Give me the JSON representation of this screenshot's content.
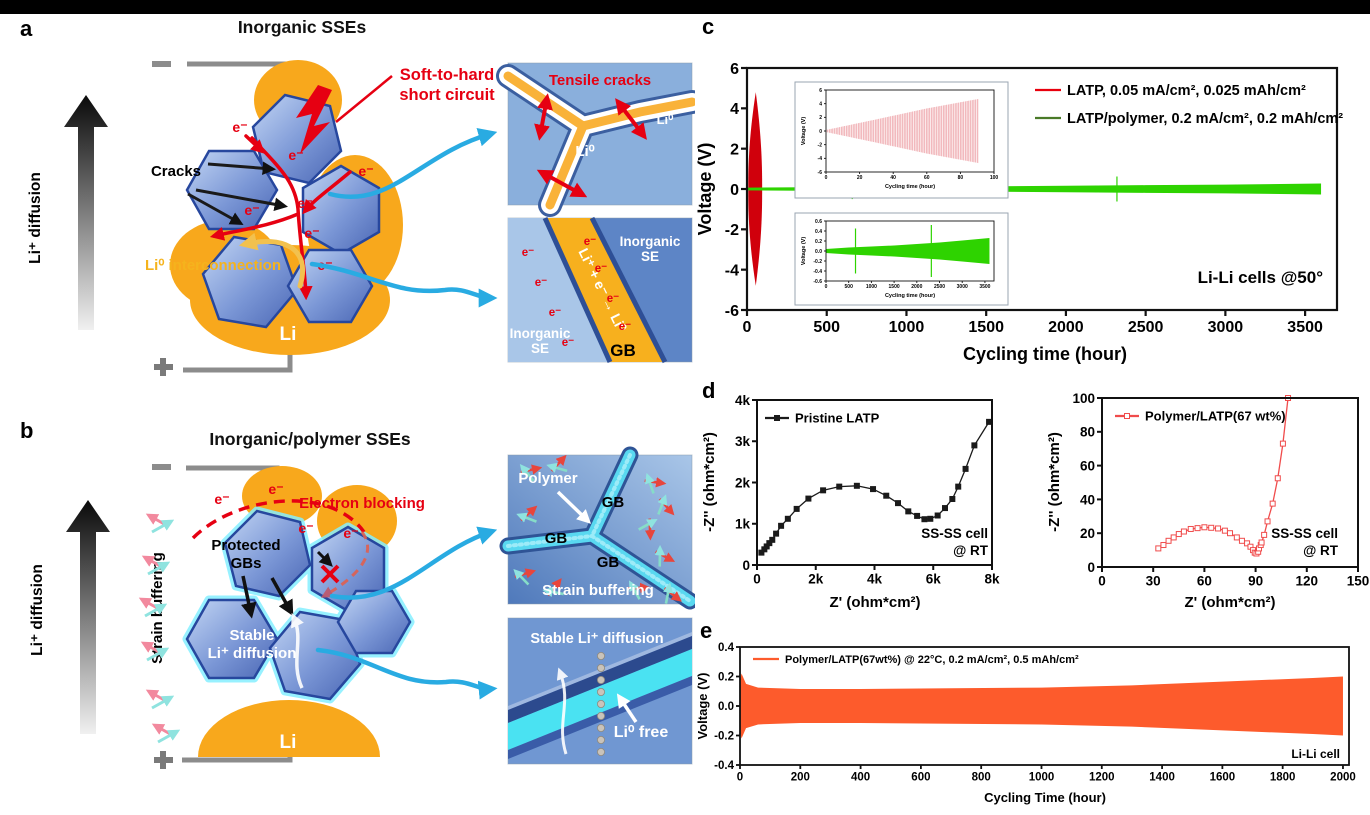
{
  "labels": {
    "a": "a",
    "b": "b",
    "c": "c",
    "d": "d",
    "e": "e"
  },
  "palette": {
    "electrolyte_blue": "#5b7ec9",
    "lithium_orange": "#f8a81c",
    "highlight_red": "#e60012",
    "arrow_cyan": "#29abe2",
    "polymer_cyan": "#59d8f0",
    "trace_green": "#2ed300",
    "trace_orange": "#fd5b2c"
  },
  "diagram_a": {
    "title": "Inorganic SSEs",
    "axis_label": "Li⁺ diffusion",
    "electrode_top": "−",
    "electrode_bottom": "+",
    "short_circuit_line1": "Soft-to-hard",
    "short_circuit_line2": "short circuit",
    "cracks": "Cracks",
    "e_label": "e⁻",
    "li0_interconnection": "Li⁰ interconnection",
    "li": "Li",
    "inset_tensile": {
      "title": "Tensile cracks",
      "li0": "Li⁰"
    },
    "inset_gb": {
      "inorganic": "Inorganic",
      "se": "SE",
      "gb": "GB",
      "reaction": "Li⁺ + e⁻ → Li⁰",
      "e_label": "e⁻"
    }
  },
  "diagram_b": {
    "title": "Inorganic/polymer SSEs",
    "axis_label": "Li⁺ diffusion",
    "strain_buffering": "Strain buffering",
    "electron_blocking": "Electron blocking",
    "protected_line1": "Protected",
    "protected_line2": "GBs",
    "stable_line1": "Stable",
    "stable_line2": "Li⁺ diffusion",
    "e_label": "e⁻",
    "li": "Li",
    "inset_polymer": {
      "polymer": "Polymer",
      "gb": "GB",
      "strain_buffering": "Strain buffering"
    },
    "inset_diffusion": {
      "title": "Stable Li⁺ diffusion",
      "li0_free": "Li⁰ free"
    }
  },
  "chart_data": [
    {
      "id": "c",
      "type": "line",
      "title": "",
      "xlabel": "Cycling time (hour)",
      "ylabel": "Voltage (V)",
      "xlim": [
        0,
        3700
      ],
      "ylim": [
        -6,
        6
      ],
      "grid": false,
      "legend_position": "top-right-inside",
      "xticks": [
        0,
        500,
        1000,
        1500,
        2000,
        2500,
        3000,
        3500
      ],
      "xtick_labels": [
        "0",
        "500",
        "1000",
        "1500",
        "2000",
        "2500",
        "3000",
        "3500"
      ],
      "yticks": [
        -6,
        -4,
        -2,
        0,
        2,
        4,
        6
      ],
      "ytick_labels": [
        "-6",
        "-4",
        "-2",
        "0",
        "2",
        "4",
        "6"
      ],
      "legend": [
        {
          "label": "LATP, 0.05 mA/cm², 0.025 mAh/cm²",
          "color": "#e8000d"
        },
        {
          "label": "LATP/polymer, 0.2 mA/cm², 0.2 mAh/cm²",
          "color": "#4a7a28"
        }
      ],
      "annotation": [
        "Li-Li cells @50°"
      ],
      "series": [
        {
          "name": "LATP",
          "kind": "lens",
          "color": "#d0000c",
          "x": [
            8,
            55,
            95
          ],
          "vmax": 4.8
        },
        {
          "name": "LATP/polymer",
          "kind": "envelope",
          "color": "#2ed300",
          "x": [
            0,
            500,
            1000,
            1500,
            2000,
            2500,
            3000,
            3600
          ],
          "amp": [
            0.07,
            0.09,
            0.11,
            0.13,
            0.16,
            0.19,
            0.22,
            0.27
          ],
          "spikes": [
            {
              "x": 660,
              "amp": 0.5
            },
            {
              "x": 2320,
              "amp": 0.62
            }
          ]
        }
      ],
      "insets": [
        {
          "xlabel": "Cycling time (hour)",
          "ylabel": "Voltage (V)",
          "xlim": [
            0,
            100
          ],
          "ylim": [
            -6,
            6
          ],
          "xticks": [
            0,
            20,
            40,
            60,
            80,
            100
          ],
          "xtick_labels": [
            "0",
            "20",
            "40",
            "60",
            "80",
            "100"
          ],
          "yticks": [
            -6,
            -4,
            -2,
            0,
            2,
            4,
            6
          ],
          "ytick_labels": [
            "-6",
            "-4",
            "-2",
            "0",
            "2",
            "4",
            "6"
          ],
          "series": [
            {
              "kind": "envelope",
              "hatch": true,
              "color": "#e8868e",
              "fill": "#fbe9ea",
              "x": [
                0,
                30,
                60,
                91
              ],
              "amp": [
                0.15,
                1.7,
                3.3,
                4.7
              ]
            }
          ]
        },
        {
          "xlabel": "Cycling time (hour)",
          "ylabel": "Voltage (V)",
          "xlim": [
            0,
            3700
          ],
          "ylim": [
            -0.6,
            0.6
          ],
          "xticks": [
            0,
            500,
            1000,
            1500,
            2000,
            2500,
            3000,
            3500
          ],
          "xtick_labels": [
            "0",
            "500",
            "1000",
            "1500",
            "2000",
            "2500",
            "3000",
            "3500"
          ],
          "yticks": [
            -0.6,
            -0.4,
            -0.2,
            0,
            0.2,
            0.4,
            0.6
          ],
          "ytick_labels": [
            "-0.6",
            "-0.4",
            "-0.2",
            "0.0",
            "0.2",
            "0.4",
            "0.6"
          ],
          "series": [
            {
              "kind": "envelope",
              "color": "#2ed300",
              "x": [
                0,
                500,
                1000,
                1500,
                2000,
                2500,
                3000,
                3600
              ],
              "amp": [
                0.04,
                0.07,
                0.09,
                0.11,
                0.14,
                0.17,
                0.21,
                0.26
              ],
              "spikes": [
                {
                  "x": 650,
                  "amp": 0.45
                },
                {
                  "x": 2320,
                  "amp": 0.52
                }
              ]
            }
          ]
        }
      ]
    },
    {
      "id": "d-left",
      "type": "scatter",
      "xlabel": "Z' (ohm*cm²)",
      "ylabel": "-Z'' (ohm*cm²)",
      "xlim": [
        0,
        8000
      ],
      "ylim": [
        0,
        4000
      ],
      "grid": false,
      "xticks": [
        0,
        2000,
        4000,
        6000,
        8000
      ],
      "xtick_labels": [
        "0",
        "2k",
        "4k",
        "6k",
        "8k"
      ],
      "yticks": [
        0,
        1000,
        2000,
        3000,
        4000
      ],
      "ytick_labels": [
        "0",
        "1k",
        "2k",
        "3k",
        "4k"
      ],
      "legend": [
        {
          "label": "Pristine LATP",
          "color": "#1a1a1a"
        }
      ],
      "annotation": [
        "SS-SS cell",
        "@ RT"
      ],
      "series": [
        {
          "name": "Pristine LATP",
          "kind": "scatterline",
          "color": "#1a1a1a",
          "marker": "square",
          "marker_fill": "#1a1a1a",
          "points": [
            [
              150,
              300
            ],
            [
              250,
              380
            ],
            [
              330,
              450
            ],
            [
              420,
              530
            ],
            [
              520,
              610
            ],
            [
              650,
              760
            ],
            [
              820,
              950
            ],
            [
              1050,
              1120
            ],
            [
              1350,
              1360
            ],
            [
              1750,
              1610
            ],
            [
              2250,
              1810
            ],
            [
              2800,
              1900
            ],
            [
              3400,
              1920
            ],
            [
              3950,
              1840
            ],
            [
              4400,
              1680
            ],
            [
              4800,
              1500
            ],
            [
              5150,
              1300
            ],
            [
              5450,
              1190
            ],
            [
              5700,
              1110
            ],
            [
              5900,
              1120
            ],
            [
              6150,
              1200
            ],
            [
              6400,
              1380
            ],
            [
              6650,
              1600
            ],
            [
              6850,
              1900
            ],
            [
              7100,
              2330
            ],
            [
              7400,
              2900
            ],
            [
              7900,
              3470
            ]
          ]
        }
      ]
    },
    {
      "id": "d-right",
      "type": "scatter",
      "xlabel": "Z' (ohm*cm²)",
      "ylabel": "-Z'' (ohm*cm²)",
      "xlim": [
        0,
        150
      ],
      "ylim": [
        0,
        100
      ],
      "grid": false,
      "xticks": [
        0,
        30,
        60,
        90,
        120,
        150
      ],
      "xtick_labels": [
        "0",
        "30",
        "60",
        "90",
        "120",
        "150"
      ],
      "yticks": [
        0,
        20,
        40,
        60,
        80,
        100
      ],
      "ytick_labels": [
        "0",
        "20",
        "40",
        "60",
        "80",
        "100"
      ],
      "legend": [
        {
          "label": "Polymer/LATP(67 wt%)",
          "color": "#f04c4c"
        }
      ],
      "annotation": [
        "SS-SS cell",
        "@ RT"
      ],
      "series": [
        {
          "name": "Polymer/LATP(67 wt%)",
          "kind": "scatterline",
          "color": "#f04c4c",
          "marker": "square",
          "marker_fill": "#ffffff",
          "points": [
            [
              33,
              11
            ],
            [
              36,
              13
            ],
            [
              39,
              15.5
            ],
            [
              42,
              17.5
            ],
            [
              45,
              19.5
            ],
            [
              48,
              21
            ],
            [
              52,
              22.5
            ],
            [
              56,
              23
            ],
            [
              60,
              23.5
            ],
            [
              64,
              23.2
            ],
            [
              68,
              22.8
            ],
            [
              72,
              21.5
            ],
            [
              75,
              20
            ],
            [
              79,
              17.5
            ],
            [
              82,
              15.5
            ],
            [
              85,
              14
            ],
            [
              87,
              12
            ],
            [
              88.5,
              10
            ],
            [
              89.5,
              8.5
            ],
            [
              90.5,
              8
            ],
            [
              91.5,
              9
            ],
            [
              92,
              11
            ],
            [
              93,
              13
            ],
            [
              93.5,
              14.5
            ],
            [
              95,
              19
            ],
            [
              97,
              27
            ],
            [
              100,
              37.5
            ],
            [
              103,
              52.5
            ],
            [
              106,
              73
            ],
            [
              109,
              100
            ]
          ]
        }
      ]
    },
    {
      "id": "e",
      "type": "line",
      "xlabel": "Cycling Time (hour)",
      "ylabel": "Voltage (V)",
      "xlim": [
        0,
        2020
      ],
      "ylim": [
        -0.4,
        0.4
      ],
      "grid": false,
      "xticks": [
        0,
        200,
        400,
        600,
        800,
        1000,
        1200,
        1400,
        1600,
        1800,
        2000
      ],
      "xtick_labels": [
        "0",
        "200",
        "400",
        "600",
        "800",
        "1000",
        "1200",
        "1400",
        "1600",
        "1800",
        "2000"
      ],
      "yticks": [
        -0.4,
        -0.2,
        0,
        0.2,
        0.4
      ],
      "ytick_labels": [
        "-0.4",
        "-0.2",
        "0.0",
        "0.2",
        "0.4"
      ],
      "legend": [
        {
          "label": "Polymer/LATP(67wt%) @ 22°C, 0.2 mA/cm², 0.5 mAh/cm²",
          "color": "#fd5b2c"
        }
      ],
      "annotation": [
        "Li-Li cell"
      ],
      "series": [
        {
          "name": "Polymer/LATP(67wt%)",
          "kind": "envelope",
          "color": "#fd5b2c",
          "x": [
            0,
            5,
            20,
            60,
            200,
            400,
            700,
            1000,
            1300,
            1600,
            1900,
            2000
          ],
          "amp": [
            0.17,
            0.22,
            0.15,
            0.125,
            0.115,
            0.115,
            0.12,
            0.125,
            0.14,
            0.165,
            0.19,
            0.2
          ]
        }
      ]
    }
  ]
}
